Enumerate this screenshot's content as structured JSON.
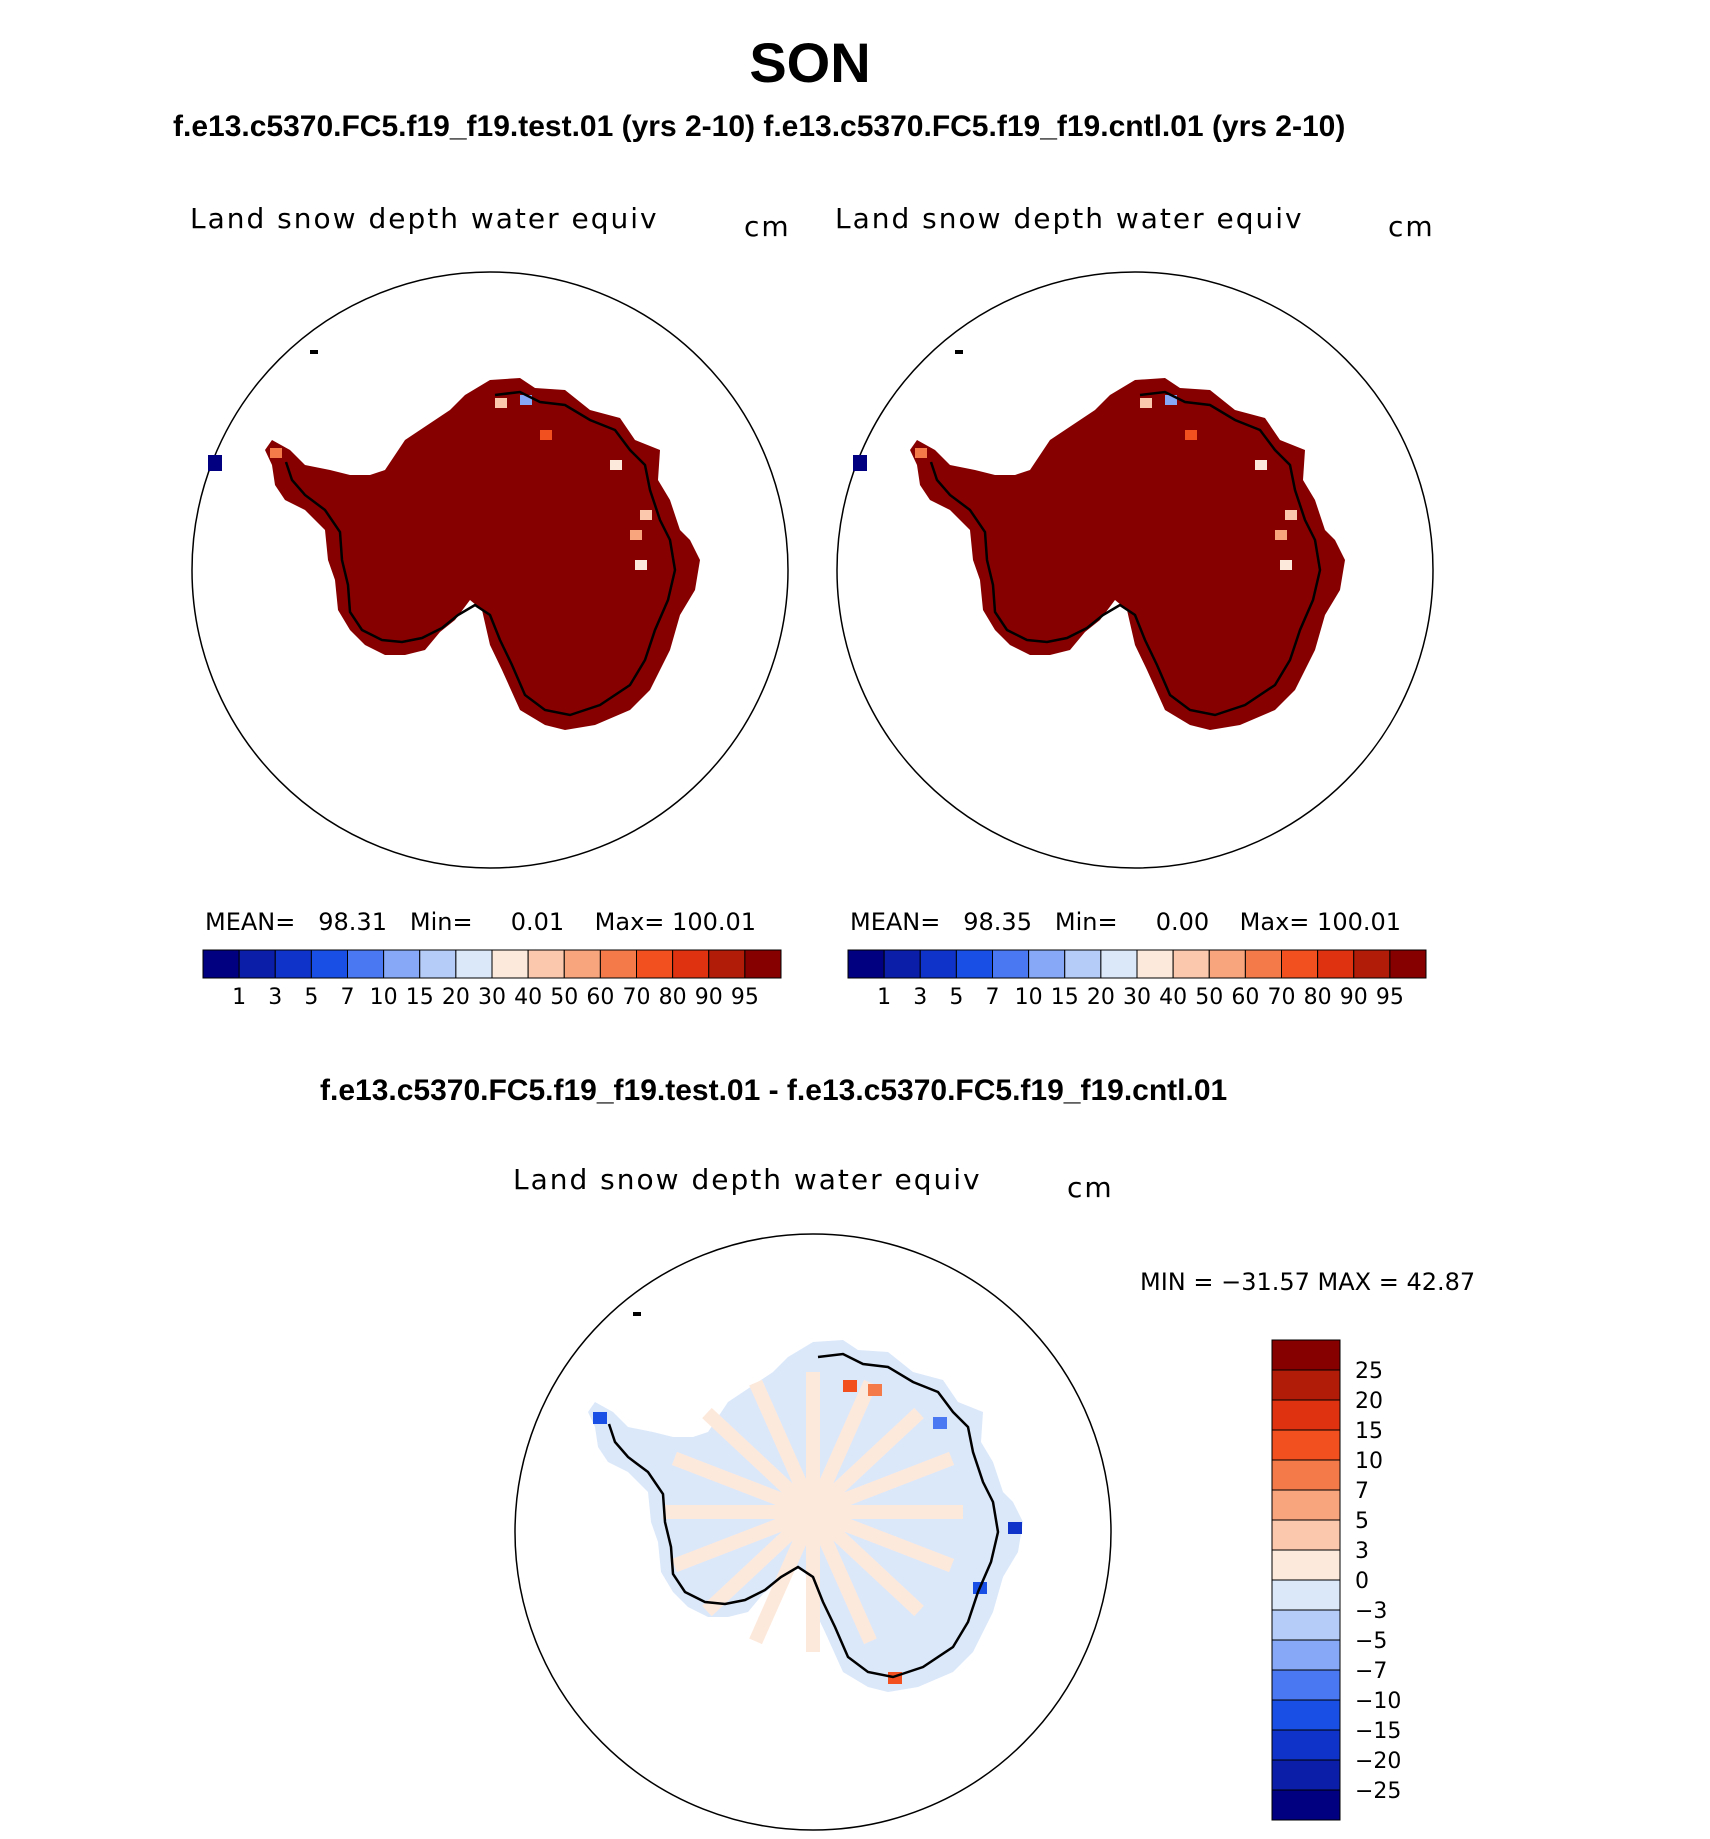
{
  "page": {
    "title": "SON",
    "subtitle": "f.e13.c5370.FC5.f19_f19.test.01 (yrs 2-10) f.e13.c5370.FC5.f19_f19.cntl.01 (yrs 2-10)",
    "diff_title": "f.e13.c5370.FC5.f19_f19.test.01 - f.e13.c5370.FC5.f19_f19.cntl.01"
  },
  "panels": [
    {
      "id": "test",
      "variable_label": "Land snow depth water equiv",
      "units": "cm",
      "stats": {
        "mean_label": "MEAN=",
        "mean": "98.31",
        "min_label": "Min=",
        "min": "0.01",
        "max_label": "Max=",
        "max": "100.01"
      }
    },
    {
      "id": "cntl",
      "variable_label": "Land snow depth water equiv",
      "units": "cm",
      "stats": {
        "mean_label": "MEAN=",
        "mean": "98.35",
        "min_label": "Min=",
        "min": "0.00",
        "max_label": "Max=",
        "max": "100.01"
      }
    }
  ],
  "diff_panel": {
    "variable_label": "Land snow depth water equiv",
    "units": "cm",
    "minmax": "MIN = −31.57 MAX =   42.87"
  },
  "colorbar_abs": {
    "ticks": [
      "1",
      "3",
      "5",
      "7",
      "10",
      "15",
      "20",
      "30",
      "40",
      "50",
      "60",
      "70",
      "80",
      "90",
      "95"
    ],
    "colors": [
      "#000080",
      "#0a1ea8",
      "#0f33c8",
      "#1a4fe6",
      "#4a78f2",
      "#86a8f6",
      "#b5cbf8",
      "#dbe8fa",
      "#fde9dc",
      "#fbc8ae",
      "#f8a47d",
      "#f57a4a",
      "#f2501e",
      "#de3210",
      "#b01c08",
      "#870000"
    ]
  },
  "colorbar_diff": {
    "ticks": [
      "25",
      "20",
      "15",
      "10",
      "7",
      "5",
      "3",
      "0",
      "−3",
      "−5",
      "−7",
      "−10",
      "−15",
      "−20",
      "−25"
    ],
    "colors": [
      "#870000",
      "#b01c08",
      "#de3210",
      "#f2501e",
      "#f57a4a",
      "#f8a47d",
      "#fbc8ae",
      "#fde9dc",
      "#dbe8fa",
      "#b5cbf8",
      "#86a8f6",
      "#4a78f2",
      "#1a4fe6",
      "#0f33c8",
      "#0a1ea8",
      "#000080"
    ]
  },
  "map_colors": {
    "land_high": "#870000",
    "diff_pos": "#fde9dc",
    "diff_neg": "#dbe8fa"
  }
}
